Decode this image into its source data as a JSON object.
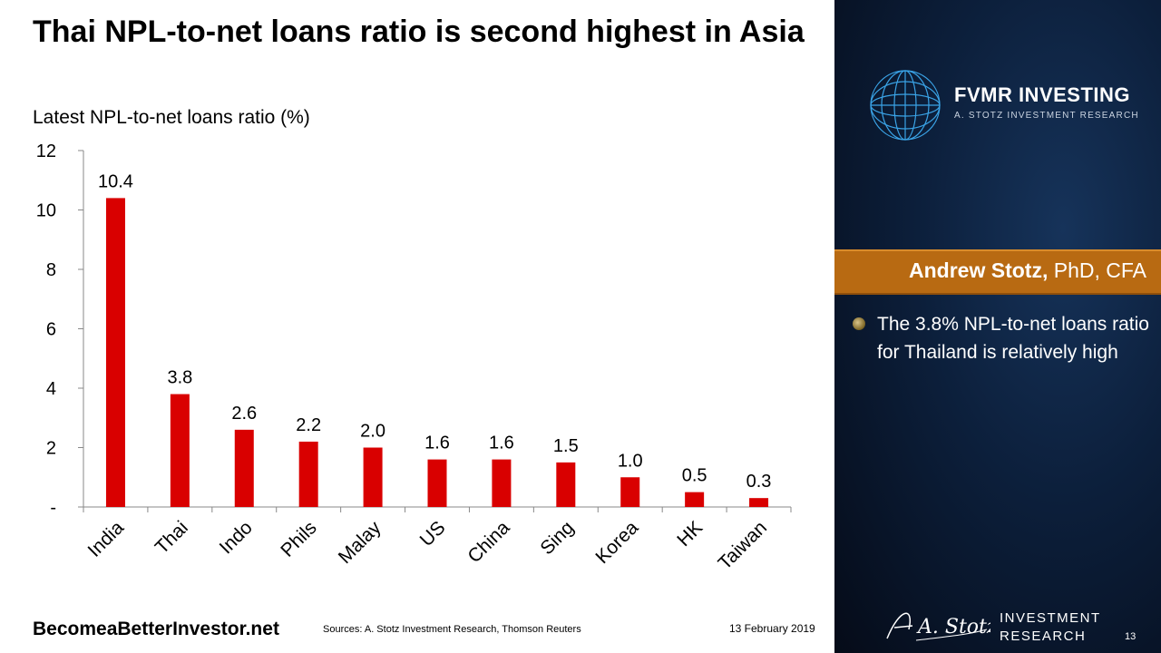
{
  "slide": {
    "title": "Thai NPL-to-net loans ratio is second highest in Asia",
    "footer_site": "BecomeaBetterInvestor.net",
    "footer_source": "Sources: A. Stotz Investment Research, Thomson Reuters",
    "footer_date": "13 February 2019",
    "page_number": "13"
  },
  "sidebar": {
    "brand_name": "FVMR INVESTING",
    "brand_sub": "A. STOTZ INVESTMENT RESEARCH",
    "author_name": "Andrew Stotz,",
    "author_credentials": " PhD, CFA",
    "bullet_text": "The 3.8% NPL-to-net loans ratio for Thailand is relatively high",
    "logo_line1": "INVESTMENT",
    "logo_line2": "RESEARCH",
    "logo_signature": "A. Stotz",
    "accent_color": "#b86a12",
    "panel_color": "#0c1f3b"
  },
  "chart_data": {
    "type": "bar",
    "title": "Latest NPL-to-net loans ratio (%)",
    "categories": [
      "India",
      "Thai",
      "Indo",
      "Phils",
      "Malay",
      "US",
      "China",
      "Sing",
      "Korea",
      "HK",
      "Taiwan"
    ],
    "values": [
      10.4,
      3.8,
      2.6,
      2.2,
      2.0,
      1.6,
      1.6,
      1.5,
      1.0,
      0.5,
      0.3
    ],
    "data_labels": [
      "10.4",
      "3.8",
      "2.6",
      "2.2",
      "2.0",
      "1.6",
      "1.6",
      "1.5",
      "1.0",
      "0.5",
      "0.3"
    ],
    "yticks": [
      "-",
      "2",
      "4",
      "6",
      "8",
      "10",
      "12"
    ],
    "ylim": [
      0,
      12
    ],
    "bar_color": "#d90000",
    "grid": false,
    "legend": "none"
  }
}
